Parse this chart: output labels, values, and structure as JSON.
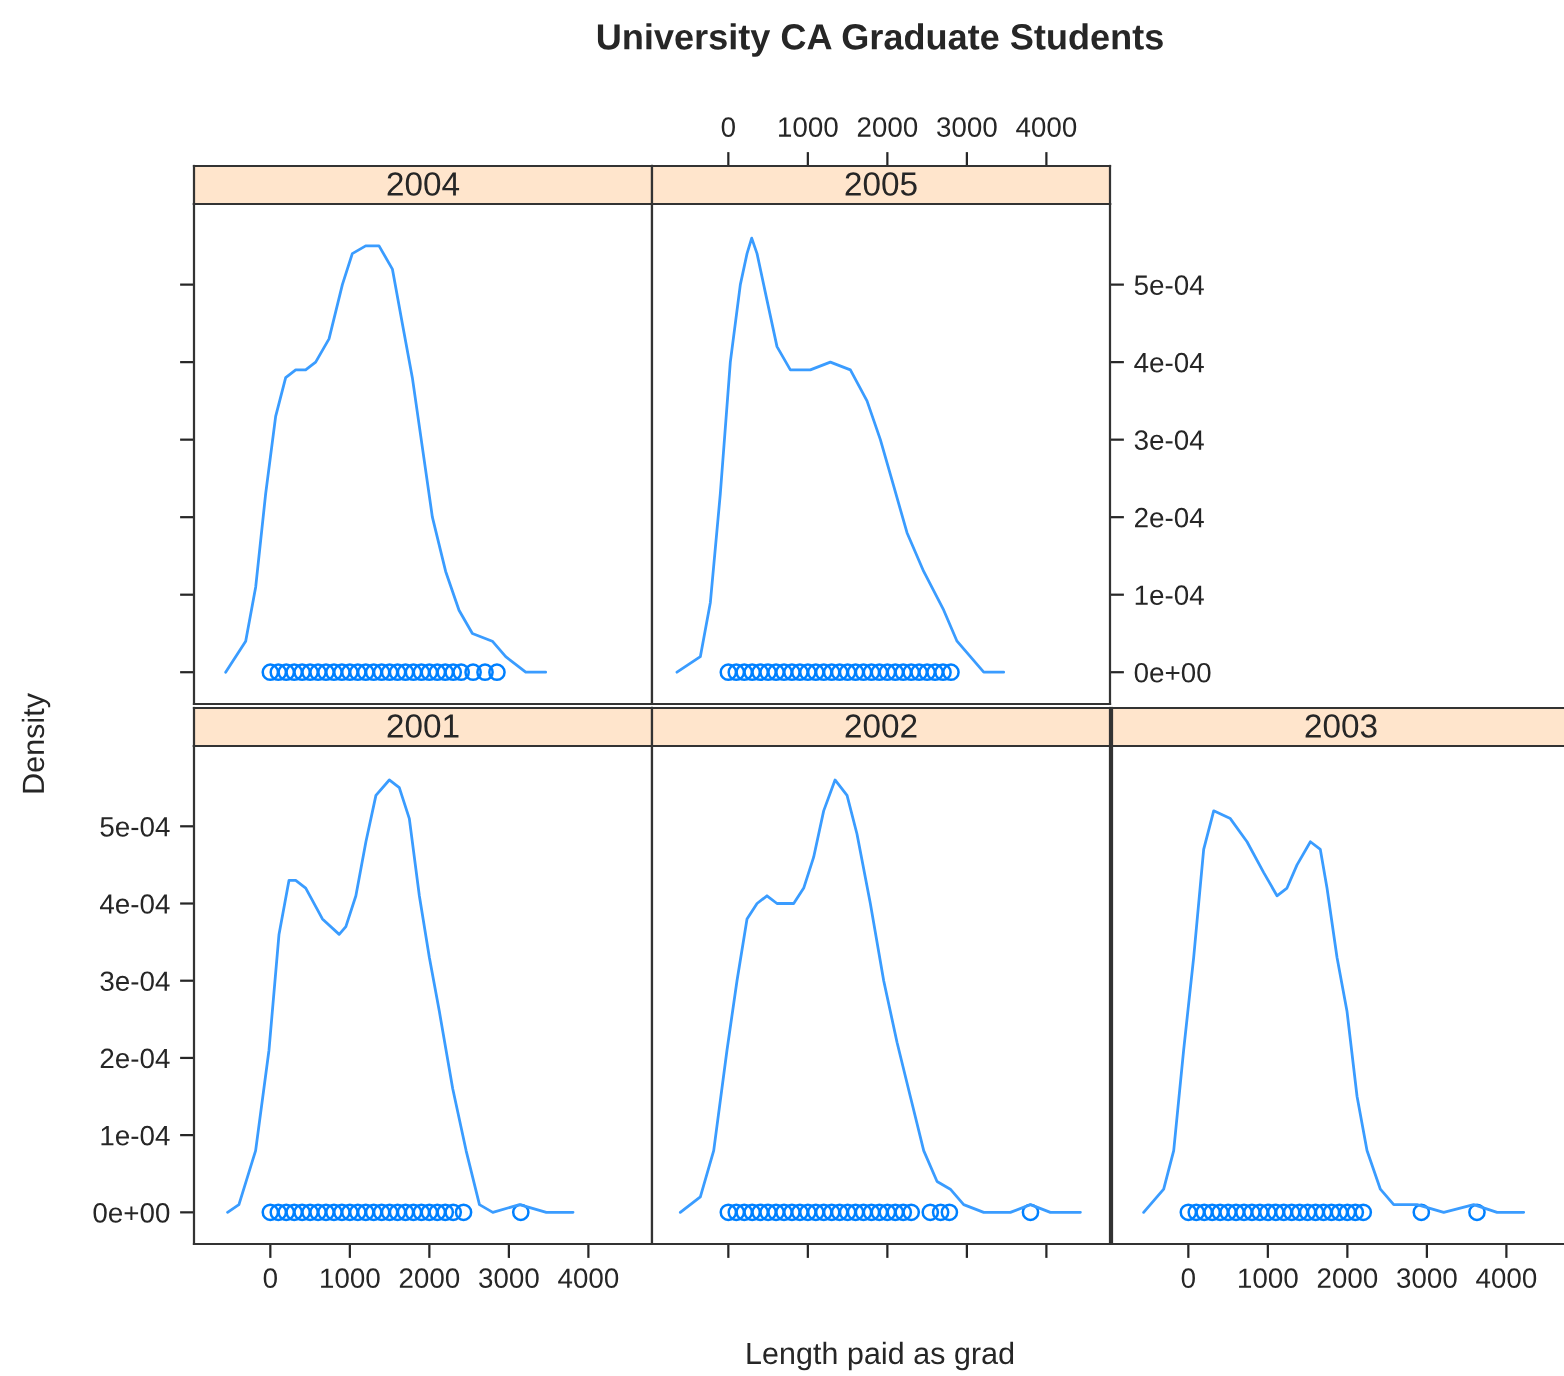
{
  "chart_data": [
    {
      "type": "line",
      "title": "2004",
      "annotations": [
        "University CA Graduate Students"
      ],
      "xlim": [
        -960,
        4800
      ],
      "ylim": [
        -4.1e-05,
        0.000604
      ],
      "yticks": [
        {
          "value": 0,
          "label": null
        },
        {
          "value": 0.0001,
          "label": null
        },
        {
          "value": 0.0002,
          "label": null
        },
        {
          "value": 0.0003,
          "label": null
        },
        {
          "value": 0.0004,
          "label": null
        },
        {
          "value": 0.0005,
          "label": null
        }
      ],
      "tick_labels": false,
      "series": [
        {
          "color": "#3a9cff",
          "x": [
            -562,
            -310,
            -184,
            -59,
            67,
            193,
            319,
            444,
            570,
            738,
            906,
            1031,
            1199,
            1367,
            1535,
            1660,
            1786,
            1912,
            2038,
            2205,
            2373,
            2541,
            2792,
            2960,
            3212,
            3463
          ],
          "values": [
            0,
            4e-05,
            0.00011,
            0.00023,
            0.00033,
            0.00038,
            0.00039,
            0.00039,
            0.0004,
            0.00043,
            0.0005,
            0.00054,
            0.00055,
            0.00055,
            0.00052,
            0.00045,
            0.00038,
            0.00029,
            0.0002,
            0.00013,
            8e-05,
            5e-05,
            4e-05,
            2e-05,
            0,
            0
          ]
        },
        {
          "type": "scatter",
          "marker": "circle",
          "color": "#0080ff",
          "x": [
            0,
            100,
            200,
            300,
            400,
            500,
            600,
            700,
            800,
            900,
            1000,
            1100,
            1200,
            1300,
            1400,
            1500,
            1600,
            1700,
            1800,
            1900,
            2000,
            2100,
            2200,
            2300,
            2400,
            2550,
            2700,
            2850
          ],
          "values": [
            0,
            0,
            0,
            0,
            0,
            0,
            0,
            0,
            0,
            0,
            0,
            0,
            0,
            0,
            0,
            0,
            0,
            0,
            0,
            0,
            0,
            0,
            0,
            0,
            0,
            0,
            0,
            0
          ]
        }
      ]
    },
    {
      "type": "line",
      "title": "2005",
      "xlim": [
        -960,
        4800
      ],
      "ylim": [
        -4.1e-05,
        0.000604
      ],
      "xticks": [
        0,
        1000,
        2000,
        3000,
        4000
      ],
      "yticks": [
        {
          "value": 0,
          "label": "0e+00"
        },
        {
          "value": 0.0001,
          "label": "1e-04"
        },
        {
          "value": 0.0002,
          "label": "2e-04"
        },
        {
          "value": 0.0003,
          "label": "3e-04"
        },
        {
          "value": 0.0004,
          "label": "4e-04"
        },
        {
          "value": 0.0005,
          "label": "5e-04"
        }
      ],
      "series": [
        {
          "color": "#3a9cff",
          "x": [
            -646,
            -352,
            -226,
            -101,
            25,
            151,
            235,
            294,
            361,
            486,
            612,
            780,
            1031,
            1283,
            1535,
            1744,
            1912,
            2080,
            2247,
            2457,
            2709,
            2876,
            3044,
            3212,
            3463
          ],
          "values": [
            0,
            2e-05,
            9e-05,
            0.00023,
            0.0004,
            0.0005,
            0.00054,
            0.00056,
            0.00054,
            0.00048,
            0.00042,
            0.00039,
            0.00039,
            0.0004,
            0.00039,
            0.00035,
            0.0003,
            0.00024,
            0.00018,
            0.00013,
            8e-05,
            4e-05,
            2e-05,
            0,
            0
          ]
        },
        {
          "type": "scatter",
          "marker": "circle",
          "color": "#0080ff",
          "x": [
            0,
            100,
            200,
            300,
            400,
            500,
            600,
            700,
            800,
            900,
            1000,
            1100,
            1200,
            1300,
            1400,
            1500,
            1600,
            1700,
            1800,
            1900,
            2000,
            2100,
            2200,
            2300,
            2400,
            2500,
            2600,
            2700,
            2800
          ],
          "values": [
            0,
            0,
            0,
            0,
            0,
            0,
            0,
            0,
            0,
            0,
            0,
            0,
            0,
            0,
            0,
            0,
            0,
            0,
            0,
            0,
            0,
            0,
            0,
            0,
            0,
            0,
            0,
            0,
            0
          ]
        }
      ]
    },
    {
      "type": "line",
      "title": "2001",
      "ylabel": "Density",
      "xlim": [
        -960,
        4800
      ],
      "ylim": [
        -4.1e-05,
        0.000604
      ],
      "xticks": [
        0,
        1000,
        2000,
        3000,
        4000
      ],
      "yticks": [
        {
          "value": 0,
          "label": "0e+00"
        },
        {
          "value": 0.0001,
          "label": "1e-04"
        },
        {
          "value": 0.0002,
          "label": "2e-04"
        },
        {
          "value": 0.0003,
          "label": "3e-04"
        },
        {
          "value": 0.0004,
          "label": "4e-04"
        },
        {
          "value": 0.0005,
          "label": "5e-04"
        }
      ],
      "series": [
        {
          "color": "#3a9cff",
          "x": [
            -538,
            -395,
            -185,
            -17,
            109,
            235,
            319,
            445,
            655,
            866,
            950,
            1076,
            1202,
            1328,
            1496,
            1622,
            1748,
            1874,
            2000,
            2126,
            2294,
            2462,
            2630,
            2798,
            3134,
            3471,
            3807
          ],
          "values": [
            0,
            1e-05,
            8e-05,
            0.00021,
            0.00036,
            0.00043,
            0.00043,
            0.00042,
            0.00038,
            0.00036,
            0.00037,
            0.00041,
            0.00048,
            0.00054,
            0.00056,
            0.00055,
            0.00051,
            0.00041,
            0.00033,
            0.00026,
            0.00016,
            8e-05,
            1e-05,
            0,
            1e-05,
            0,
            0
          ]
        },
        {
          "type": "scatter",
          "marker": "circle",
          "color": "#0080ff",
          "x": [
            0,
            100,
            200,
            300,
            400,
            500,
            600,
            700,
            800,
            900,
            1000,
            1100,
            1200,
            1300,
            1400,
            1500,
            1600,
            1700,
            1800,
            1900,
            2000,
            2100,
            2200,
            2300,
            2430,
            3150
          ],
          "values": [
            0,
            0,
            0,
            0,
            0,
            0,
            0,
            0,
            0,
            0,
            0,
            0,
            0,
            0,
            0,
            0,
            0,
            0,
            0,
            0,
            0,
            0,
            0,
            0,
            0,
            0
          ]
        }
      ]
    },
    {
      "type": "line",
      "title": "2002",
      "xlabel": "Length paid as grad",
      "xlim": [
        -960,
        4800
      ],
      "ylim": [
        -4.1e-05,
        0.000604
      ],
      "xticks": [
        {
          "value": 0,
          "label": null
        },
        {
          "value": 1000,
          "label": null
        },
        {
          "value": 2000,
          "label": null
        },
        {
          "value": 3000,
          "label": null
        },
        {
          "value": 4000,
          "label": null
        }
      ],
      "tick_labels": false,
      "series": [
        {
          "color": "#3a9cff",
          "x": [
            -604,
            -352,
            -184,
            -17,
            109,
            235,
            361,
            486,
            612,
            822,
            948,
            1073,
            1199,
            1342,
            1493,
            1618,
            1786,
            1954,
            2122,
            2289,
            2457,
            2625,
            2792,
            2960,
            3212,
            3547,
            3799,
            4050,
            4428
          ],
          "values": [
            0,
            2e-05,
            8e-05,
            0.00021,
            0.0003,
            0.00038,
            0.0004,
            0.00041,
            0.0004,
            0.0004,
            0.00042,
            0.00046,
            0.00052,
            0.00056,
            0.00054,
            0.00049,
            0.0004,
            0.0003,
            0.00022,
            0.00015,
            8e-05,
            4e-05,
            3e-05,
            1e-05,
            0,
            0,
            1e-05,
            0,
            0
          ]
        },
        {
          "type": "scatter",
          "marker": "circle",
          "color": "#0080ff",
          "x": [
            0,
            100,
            200,
            300,
            400,
            500,
            600,
            700,
            800,
            900,
            1000,
            1100,
            1200,
            1300,
            1400,
            1500,
            1600,
            1700,
            1800,
            1900,
            2000,
            2100,
            2200,
            2300,
            2540,
            2670,
            2780,
            3800
          ],
          "values": [
            0,
            0,
            0,
            0,
            0,
            0,
            0,
            0,
            0,
            0,
            0,
            0,
            0,
            0,
            0,
            0,
            0,
            0,
            0,
            0,
            0,
            0,
            0,
            0,
            0,
            0,
            0,
            0
          ]
        }
      ]
    },
    {
      "type": "line",
      "title": "2003",
      "xlim": [
        -960,
        4800
      ],
      "ylim": [
        -4.1e-05,
        0.000604
      ],
      "xticks": [
        0,
        1000,
        2000,
        3000,
        4000
      ],
      "tick_labels": "x",
      "series": [
        {
          "color": "#3a9cff",
          "x": [
            -562,
            -310,
            -184,
            -59,
            67,
            193,
            319,
            528,
            738,
            948,
            1115,
            1241,
            1367,
            1535,
            1660,
            1744,
            1870,
            1996,
            2122,
            2247,
            2415,
            2583,
            2876,
            3212,
            3589,
            3883,
            4218
          ],
          "values": [
            0,
            3e-05,
            8e-05,
            0.00021,
            0.00033,
            0.00047,
            0.00052,
            0.00051,
            0.00048,
            0.00044,
            0.00041,
            0.00042,
            0.00045,
            0.00048,
            0.00047,
            0.00042,
            0.00033,
            0.00026,
            0.00015,
            8e-05,
            3e-05,
            1e-05,
            1e-05,
            0,
            1e-05,
            0,
            0
          ]
        },
        {
          "type": "scatter",
          "marker": "circle",
          "color": "#0080ff",
          "x": [
            0,
            100,
            200,
            300,
            400,
            500,
            600,
            700,
            800,
            900,
            1000,
            1100,
            1200,
            1300,
            1400,
            1500,
            1600,
            1700,
            1800,
            1900,
            2000,
            2100,
            2200,
            2930,
            3630
          ],
          "values": [
            0,
            0,
            0,
            0,
            0,
            0,
            0,
            0,
            0,
            0,
            0,
            0,
            0,
            0,
            0,
            0,
            0,
            0,
            0,
            0,
            0,
            0,
            0,
            0,
            0
          ]
        }
      ]
    }
  ]
}
